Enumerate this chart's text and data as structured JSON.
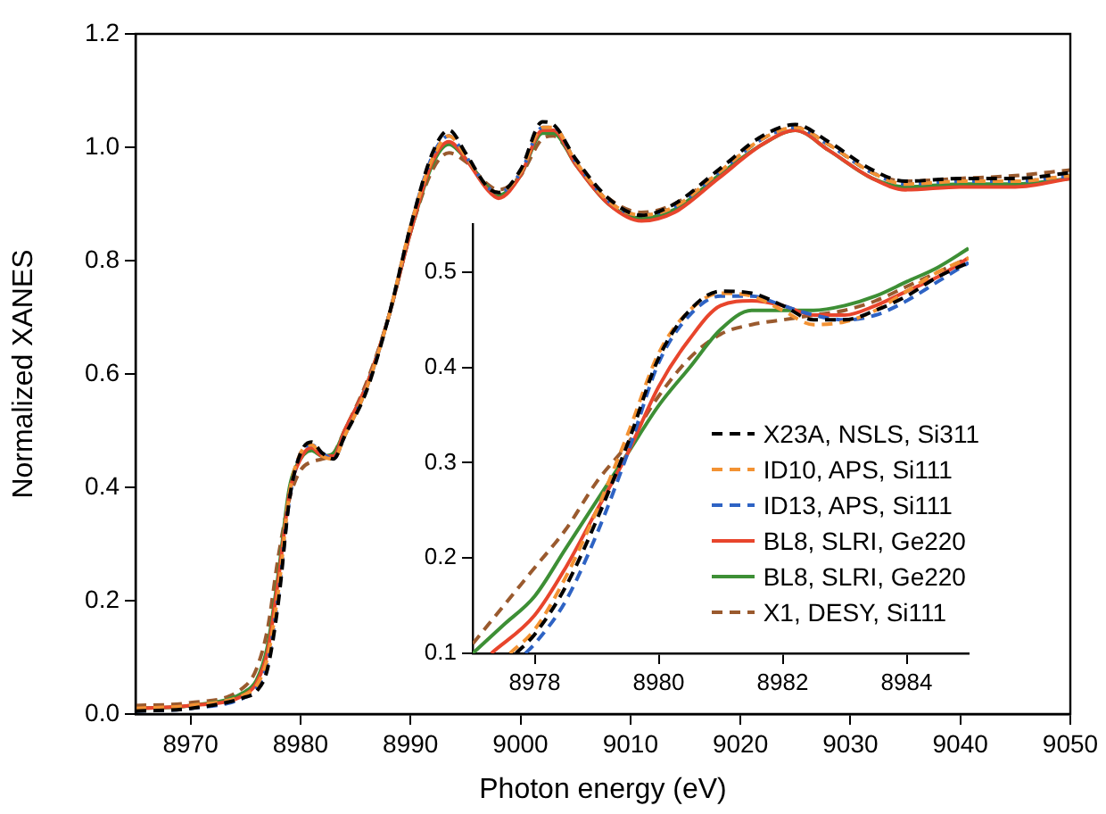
{
  "chart_data": [
    {
      "type": "line",
      "xlabel": "Photon energy (eV)",
      "ylabel": "Normalized XANES",
      "xlim": [
        8965,
        9050
      ],
      "ylim": [
        0,
        1.2
      ],
      "xticks": [
        8970,
        8980,
        8990,
        9000,
        9010,
        9020,
        9030,
        9040,
        9050
      ],
      "yticks": [
        {
          "value": 0,
          "label": "0.0"
        },
        {
          "value": 0.2,
          "label": "0.2"
        },
        {
          "value": 0.4,
          "label": "0.4"
        },
        {
          "value": 0.6,
          "label": "0.6"
        },
        {
          "value": 0.8,
          "label": "0.8"
        },
        {
          "value": 1,
          "label": "1.0"
        },
        {
          "value": 1.2,
          "label": "1.2"
        }
      ],
      "legend": false,
      "series": [
        {
          "color": "#000000",
          "line_style": "dashed",
          "x": [
            8965,
            8970,
            8975,
            8976,
            8977,
            8978,
            8979,
            8980,
            8981,
            8982,
            8983,
            8984,
            8986,
            8988,
            8990,
            8992,
            8993.5,
            8995,
            8997,
            8998,
            9000,
            9002,
            9003,
            9005,
            9008,
            9011,
            9014,
            9018,
            9022,
            9025,
            9028,
            9032,
            9035,
            9040,
            9045,
            9050
          ],
          "values": [
            0.005,
            0.01,
            0.03,
            0.04,
            0.08,
            0.2,
            0.38,
            0.46,
            0.48,
            0.46,
            0.45,
            0.49,
            0.57,
            0.7,
            0.86,
            0.99,
            1.03,
            0.99,
            0.93,
            0.92,
            0.96,
            1.045,
            1.04,
            0.98,
            0.91,
            0.88,
            0.9,
            0.96,
            1.02,
            1.04,
            1.01,
            0.96,
            0.94,
            0.945,
            0.945,
            0.955
          ]
        },
        {
          "color": "#f39233",
          "line_style": "dashed",
          "x": [
            8965,
            8970,
            8975,
            8976,
            8977,
            8978,
            8979,
            8980,
            8981,
            8982,
            8983,
            8984,
            8986,
            8988,
            8990,
            8992,
            8993.5,
            8995,
            8997,
            8998,
            9000,
            9002,
            9003,
            9005,
            9008,
            9011,
            9014,
            9018,
            9022,
            9025,
            9028,
            9032,
            9035,
            9040,
            9045,
            9050
          ],
          "values": [
            0.01,
            0.015,
            0.035,
            0.05,
            0.1,
            0.22,
            0.39,
            0.46,
            0.475,
            0.455,
            0.45,
            0.49,
            0.575,
            0.7,
            0.86,
            0.98,
            1.02,
            0.985,
            0.93,
            0.92,
            0.955,
            1.035,
            1.035,
            0.975,
            0.905,
            0.88,
            0.895,
            0.955,
            1.015,
            1.035,
            1.005,
            0.955,
            0.935,
            0.94,
            0.94,
            0.95
          ]
        },
        {
          "color": "#2e63c4",
          "line_style": "dashed",
          "x": [
            8965,
            8970,
            8975,
            8976,
            8977,
            8978,
            8979,
            8980,
            8981,
            8982,
            8983,
            8984,
            8986,
            8988,
            8990,
            8992,
            8993.5,
            8995,
            8997,
            8998,
            9000,
            9002,
            9003,
            9005,
            9008,
            9011,
            9014,
            9018,
            9022,
            9025,
            9028,
            9032,
            9035,
            9040,
            9045,
            9050
          ],
          "values": [
            0.005,
            0.01,
            0.03,
            0.045,
            0.09,
            0.21,
            0.38,
            0.46,
            0.475,
            0.46,
            0.45,
            0.49,
            0.575,
            0.7,
            0.86,
            0.985,
            1.02,
            0.985,
            0.93,
            0.92,
            0.955,
            1.035,
            1.035,
            0.975,
            0.905,
            0.88,
            0.895,
            0.955,
            1.015,
            1.035,
            1.005,
            0.955,
            0.935,
            0.94,
            0.94,
            0.95
          ]
        },
        {
          "color": "#e8452c",
          "line_style": "solid",
          "x": [
            8965,
            8970,
            8975,
            8976,
            8977,
            8978,
            8979,
            8980,
            8981,
            8982,
            8983,
            8984,
            8986,
            8988,
            8990,
            8992,
            8993.5,
            8995,
            8997,
            8998,
            9000,
            9002,
            9003,
            9005,
            9008,
            9011,
            9014,
            9018,
            9022,
            9025,
            9028,
            9032,
            9035,
            9040,
            9045,
            9050
          ],
          "values": [
            0.01,
            0.015,
            0.035,
            0.055,
            0.11,
            0.24,
            0.39,
            0.45,
            0.47,
            0.455,
            0.455,
            0.5,
            0.58,
            0.7,
            0.85,
            0.975,
            1.01,
            0.98,
            0.925,
            0.91,
            0.95,
            1.03,
            1.03,
            0.97,
            0.9,
            0.87,
            0.885,
            0.945,
            1.005,
            1.03,
            0.995,
            0.945,
            0.925,
            0.93,
            0.93,
            0.945
          ]
        },
        {
          "color": "#3d8f35",
          "line_style": "solid",
          "x": [
            8965,
            8970,
            8975,
            8976,
            8977,
            8978,
            8979,
            8980,
            8981,
            8982,
            8983,
            8984,
            8986,
            8988,
            8990,
            8992,
            8993.5,
            8995,
            8997,
            8998,
            9000,
            9002,
            9003,
            9005,
            9008,
            9011,
            9014,
            9018,
            9022,
            9025,
            9028,
            9032,
            9035,
            9040,
            9045,
            9050
          ],
          "values": [
            0.01,
            0.015,
            0.04,
            0.06,
            0.12,
            0.25,
            0.4,
            0.45,
            0.465,
            0.455,
            0.46,
            0.5,
            0.58,
            0.7,
            0.85,
            0.97,
            1.005,
            0.98,
            0.93,
            0.915,
            0.95,
            1.025,
            1.025,
            0.97,
            0.9,
            0.875,
            0.89,
            0.95,
            1.005,
            1.03,
            0.995,
            0.945,
            0.93,
            0.935,
            0.935,
            0.945
          ]
        },
        {
          "color": "#9a5a2e",
          "line_style": "dashed",
          "x": [
            8965,
            8970,
            8975,
            8976,
            8977,
            8978,
            8979,
            8980,
            8981,
            8982,
            8983,
            8984,
            8986,
            8988,
            8990,
            8992,
            8993.5,
            8995,
            8997,
            8998,
            9000,
            9002,
            9003,
            9005,
            9008,
            9011,
            9014,
            9018,
            9022,
            9025,
            9028,
            9032,
            9035,
            9040,
            9045,
            9050
          ],
          "values": [
            0.015,
            0.02,
            0.05,
            0.08,
            0.15,
            0.28,
            0.38,
            0.43,
            0.445,
            0.45,
            0.46,
            0.5,
            0.585,
            0.7,
            0.85,
            0.96,
            0.99,
            0.975,
            0.935,
            0.925,
            0.95,
            1.015,
            1.02,
            0.975,
            0.91,
            0.885,
            0.9,
            0.955,
            1.015,
            1.035,
            1.005,
            0.955,
            0.94,
            0.945,
            0.95,
            0.96
          ]
        }
      ]
    },
    {
      "type": "line",
      "xlim": [
        8977,
        8985
      ],
      "ylim": [
        0.1,
        0.55
      ],
      "xticks": [
        8978,
        8980,
        8982,
        8984
      ],
      "yticks": [
        0.1,
        0.2,
        0.3,
        0.4,
        0.5
      ],
      "legend": "right",
      "series": [
        {
          "name": "X23A, NSLS, Si311",
          "color": "#000000",
          "line_style": "dashed",
          "x": [
            8977.7,
            8978,
            8978.5,
            8979,
            8979.5,
            8980,
            8980.5,
            8981,
            8981.5,
            8982,
            8982.5,
            8983,
            8983.5,
            8984,
            8984.5,
            8985
          ],
          "values": [
            0.1,
            0.12,
            0.17,
            0.24,
            0.32,
            0.41,
            0.46,
            0.48,
            0.478,
            0.465,
            0.45,
            0.45,
            0.46,
            0.475,
            0.495,
            0.51
          ]
        },
        {
          "name": "ID10, APS, Si111",
          "color": "#f39233",
          "line_style": "dashed",
          "x": [
            8977.6,
            8978,
            8978.5,
            8979,
            8979.5,
            8980,
            8980.5,
            8981,
            8981.5,
            8982,
            8982.5,
            8983,
            8983.5,
            8984,
            8984.5,
            8985
          ],
          "values": [
            0.1,
            0.125,
            0.18,
            0.25,
            0.33,
            0.415,
            0.46,
            0.478,
            0.475,
            0.46,
            0.445,
            0.448,
            0.46,
            0.48,
            0.5,
            0.515
          ]
        },
        {
          "name": "ID13, APS, Si111",
          "color": "#2e63c4",
          "line_style": "dashed",
          "x": [
            8977.85,
            8978,
            8978.5,
            8979,
            8979.5,
            8980,
            8980.5,
            8981,
            8981.5,
            8982,
            8982.5,
            8983,
            8983.5,
            8984,
            8984.5,
            8985
          ],
          "values": [
            0.1,
            0.11,
            0.155,
            0.225,
            0.31,
            0.405,
            0.455,
            0.475,
            0.475,
            0.465,
            0.455,
            0.45,
            0.455,
            0.47,
            0.49,
            0.51
          ]
        },
        {
          "name": "BL8, SLRI, Ge220",
          "color": "#e8452c",
          "line_style": "solid",
          "x": [
            8977.3,
            8978,
            8978.5,
            8979,
            8979.5,
            8980,
            8980.5,
            8981,
            8981.5,
            8982,
            8982.5,
            8983,
            8983.5,
            8984,
            8984.5,
            8985
          ],
          "values": [
            0.1,
            0.14,
            0.19,
            0.25,
            0.31,
            0.38,
            0.43,
            0.465,
            0.47,
            0.465,
            0.455,
            0.455,
            0.465,
            0.48,
            0.495,
            0.515
          ]
        },
        {
          "name": "BL8, SLRI, Ge220",
          "color": "#3d8f35",
          "line_style": "solid",
          "x": [
            8977,
            8977.5,
            8978,
            8978.5,
            8979,
            8979.5,
            8980,
            8980.5,
            8981,
            8981.5,
            8982,
            8982.5,
            8983,
            8983.5,
            8984,
            8984.5,
            8985
          ],
          "values": [
            0.1,
            0.13,
            0.16,
            0.21,
            0.26,
            0.31,
            0.36,
            0.4,
            0.44,
            0.46,
            0.46,
            0.46,
            0.465,
            0.475,
            0.49,
            0.505,
            0.525
          ]
        },
        {
          "name": "X1, DESY, Si111",
          "color": "#9a5a2e",
          "line_style": "dashed",
          "x": [
            8977,
            8977.5,
            8978,
            8978.5,
            8979,
            8979.5,
            8980,
            8980.5,
            8981,
            8981.5,
            8982,
            8982.5,
            8983,
            8983.5,
            8984,
            8984.5,
            8985
          ],
          "values": [
            0.11,
            0.15,
            0.19,
            0.23,
            0.28,
            0.32,
            0.37,
            0.41,
            0.435,
            0.445,
            0.45,
            0.455,
            0.46,
            0.47,
            0.485,
            0.5,
            0.515
          ]
        }
      ]
    }
  ]
}
